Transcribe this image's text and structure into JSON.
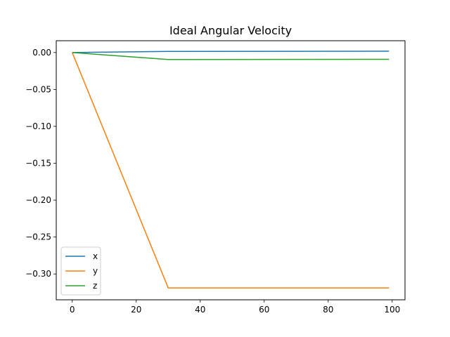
{
  "chart_data": {
    "type": "line",
    "title": "Ideal Angular Velocity",
    "xlabel": "",
    "ylabel": "",
    "xlim": [
      -5,
      104
    ],
    "ylim": [
      -0.335,
      0.016
    ],
    "xticks": [
      0,
      20,
      40,
      60,
      80,
      100
    ],
    "yticks": [
      0.0,
      -0.05,
      -0.1,
      -0.15,
      -0.2,
      -0.25,
      -0.3
    ],
    "ytick_labels": [
      "0.00",
      "−0.05",
      "−0.10",
      "−0.15",
      "−0.20",
      "−0.25",
      "−0.30"
    ],
    "xtick_labels": [
      "0",
      "20",
      "40",
      "60",
      "80",
      "100"
    ],
    "grid": false,
    "legend_position": "lower-left",
    "series": [
      {
        "name": "x",
        "color": "#1f77b4",
        "x": [
          0,
          30,
          99
        ],
        "y": [
          0.0,
          0.0015,
          0.0018
        ]
      },
      {
        "name": "y",
        "color": "#ff7f0e",
        "x": [
          0,
          30,
          99
        ],
        "y": [
          0.0,
          -0.319,
          -0.319
        ]
      },
      {
        "name": "z",
        "color": "#2ca02c",
        "x": [
          0,
          30,
          99
        ],
        "y": [
          0.0,
          -0.0095,
          -0.0092
        ]
      }
    ]
  }
}
